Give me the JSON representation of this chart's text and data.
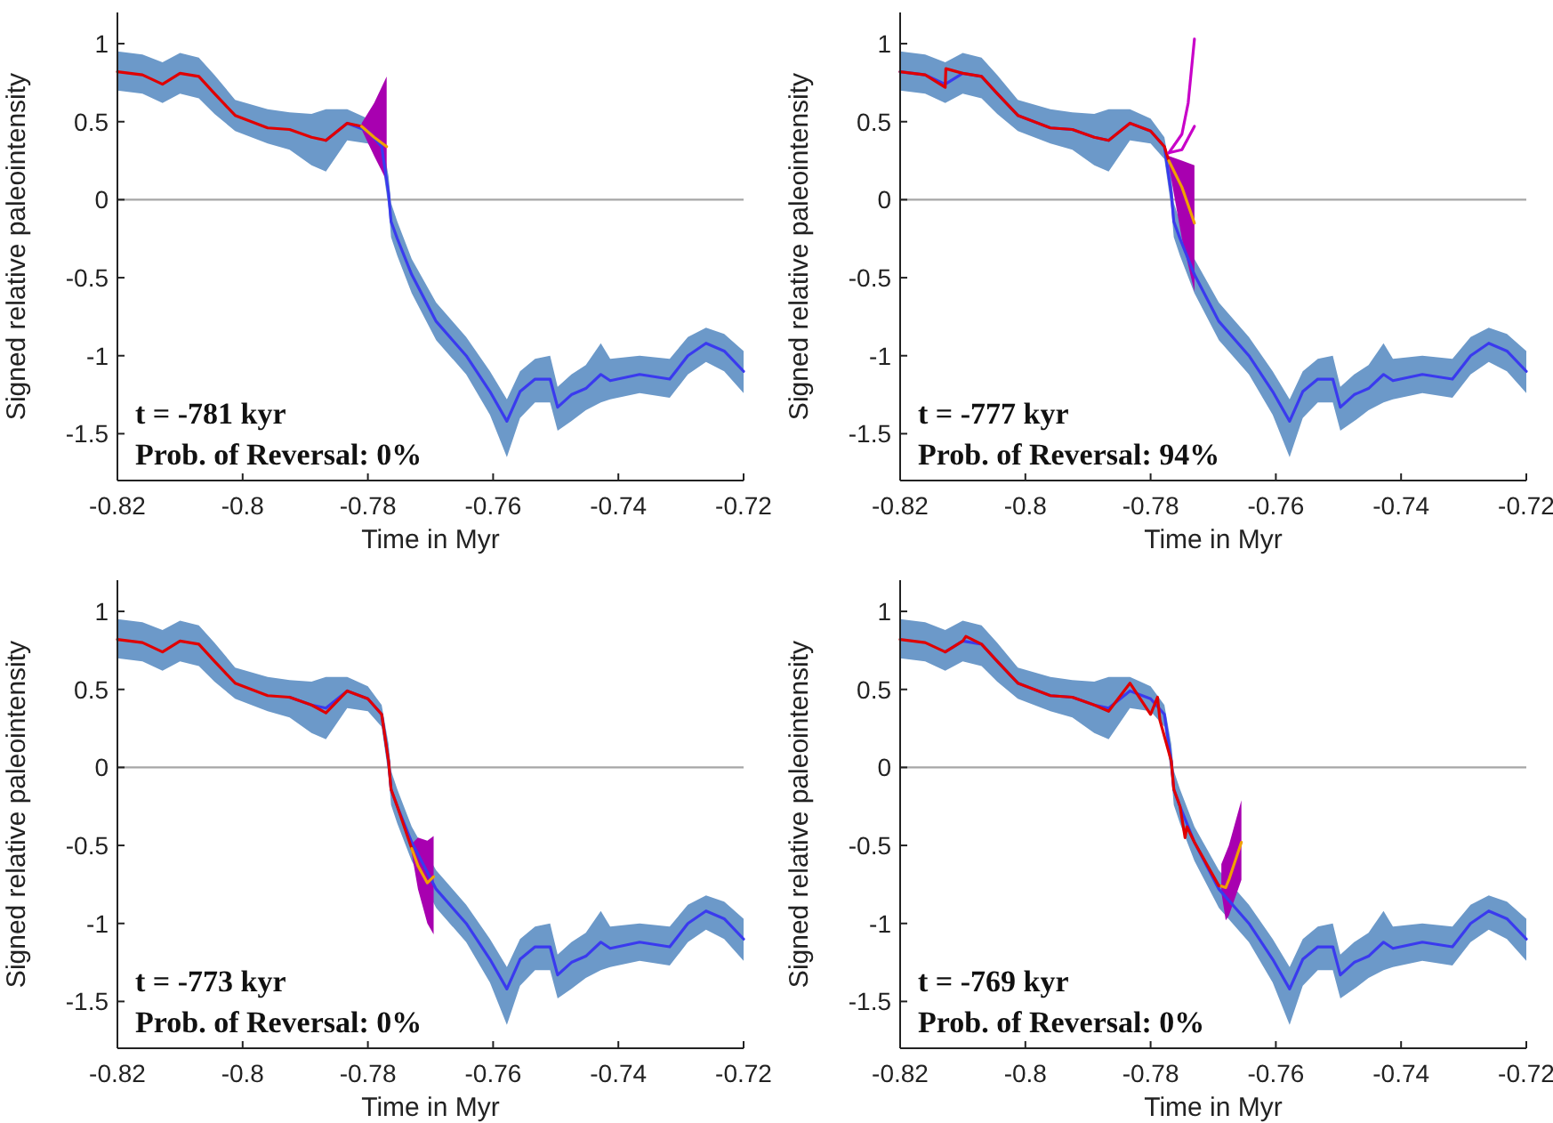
{
  "chart_data": [
    {
      "type": "line",
      "xlabel": "Time in Myr",
      "ylabel": "Signed relative paleointensity",
      "xlim": [
        -0.82,
        -0.72
      ],
      "xticks": [
        -0.82,
        -0.8,
        -0.78,
        -0.76,
        -0.74,
        -0.72
      ],
      "ylim": [
        -1.8,
        1.2
      ],
      "yticks": [
        -1.5,
        -1,
        -0.5,
        0,
        0.5,
        1
      ],
      "ref_lines": [
        {
          "axis": "y",
          "value": 0,
          "color": "#a6a6a6"
        }
      ],
      "annotations": [
        "t = -781 kyr",
        "Prob. of Reversal: 0%"
      ],
      "series": [
        {
          "type": "area",
          "color": "#6c99c9",
          "x": [
            -0.82,
            -0.816,
            -0.8128,
            -0.81,
            -0.807,
            -0.8045,
            -0.8012,
            -0.796,
            -0.7925,
            -0.789,
            -0.7867,
            -0.7833,
            -0.78,
            -0.7778,
            -0.7767,
            -0.7763,
            -0.7753,
            -0.773,
            -0.7691,
            -0.7643,
            -0.7605,
            -0.7578,
            -0.7557,
            -0.7533,
            -0.7509,
            -0.7497,
            -0.7475,
            -0.7452,
            -0.7428,
            -0.7413,
            -0.7366,
            -0.7318,
            -0.7289,
            -0.726,
            -0.7231,
            -0.72
          ],
          "values": [
            null,
            null,
            null,
            null,
            null,
            null,
            null,
            null,
            null,
            null,
            null,
            null,
            null,
            null,
            null,
            null,
            null,
            null,
            null,
            null,
            null,
            null,
            null,
            null,
            null,
            null,
            null,
            null,
            null,
            null,
            null,
            null,
            null,
            null,
            null,
            null
          ],
          "lower": [
            0.7,
            0.68,
            0.62,
            0.68,
            0.65,
            0.55,
            0.44,
            0.36,
            0.32,
            0.22,
            0.18,
            0.38,
            0.36,
            0.26,
            -0.05,
            -0.24,
            -0.36,
            -0.6,
            -0.9,
            -1.12,
            -1.38,
            -1.65,
            -1.4,
            -1.3,
            -1.3,
            -1.48,
            -1.42,
            -1.35,
            -1.3,
            -1.28,
            -1.24,
            -1.27,
            -1.12,
            -1.04,
            -1.1,
            -1.24
          ],
          "upper": [
            0.95,
            0.93,
            0.88,
            0.94,
            0.91,
            0.8,
            0.64,
            0.58,
            0.56,
            0.55,
            0.58,
            0.58,
            0.52,
            0.4,
            0.15,
            -0.02,
            -0.14,
            -0.38,
            -0.66,
            -0.88,
            -1.1,
            -1.28,
            -1.1,
            -1.02,
            -1.0,
            -1.2,
            -1.12,
            -1.06,
            -0.92,
            -1.02,
            -1.0,
            -1.02,
            -0.88,
            -0.82,
            -0.86,
            -0.97
          ]
        },
        {
          "type": "area",
          "color": "#a800b0",
          "x": [
            -0.781,
            -0.779,
            -0.777
          ],
          "values": [
            null,
            null,
            null
          ],
          "lower": [
            0.45,
            0.28,
            0.12
          ],
          "upper": [
            0.49,
            0.62,
            0.79
          ]
        },
        {
          "color": "#3a3aee",
          "x": [
            -0.7867,
            -0.7833,
            -0.78,
            -0.7778,
            -0.7767,
            -0.7763,
            -0.7753,
            -0.773,
            -0.7691,
            -0.7643,
            -0.7605,
            -0.7578,
            -0.7557,
            -0.7533,
            -0.7509,
            -0.7497,
            -0.7475,
            -0.7452,
            -0.7428,
            -0.7413,
            -0.7366,
            -0.7318,
            -0.7289,
            -0.726,
            -0.7231,
            -0.72
          ],
          "values": [
            0.38,
            0.49,
            0.44,
            0.34,
            0.04,
            -0.14,
            -0.25,
            -0.48,
            -0.78,
            -1.0,
            -1.23,
            -1.42,
            -1.23,
            -1.15,
            -1.15,
            -1.33,
            -1.25,
            -1.21,
            -1.12,
            -1.16,
            -1.12,
            -1.15,
            -1.0,
            -0.92,
            -0.97,
            -1.1
          ]
        },
        {
          "color": "#e00000",
          "x": [
            -0.82,
            -0.816,
            -0.8128,
            -0.81,
            -0.807,
            -0.8045,
            -0.8012,
            -0.796,
            -0.7925,
            -0.789,
            -0.7867,
            -0.7833,
            -0.781
          ],
          "values": [
            0.82,
            0.8,
            0.74,
            0.81,
            0.79,
            0.68,
            0.54,
            0.46,
            0.45,
            0.4,
            0.38,
            0.49,
            0.47
          ]
        },
        {
          "color": "#f0a000",
          "x": [
            -0.781,
            -0.779,
            -0.777
          ],
          "values": [
            0.47,
            0.4,
            0.34
          ]
        }
      ]
    },
    {
      "type": "line",
      "xlabel": "Time in Myr",
      "ylabel": "Signed relative paleointensity",
      "xlim": [
        -0.82,
        -0.72
      ],
      "xticks": [
        -0.82,
        -0.8,
        -0.78,
        -0.76,
        -0.74,
        -0.72
      ],
      "ylim": [
        -1.8,
        1.2
      ],
      "yticks": [
        -1.5,
        -1,
        -0.5,
        0,
        0.5,
        1
      ],
      "ref_lines": [
        {
          "axis": "y",
          "value": 0,
          "color": "#a6a6a6"
        }
      ],
      "annotations": [
        "t = -777 kyr",
        "Prob. of Reversal: 94%"
      ],
      "series": [
        {
          "type": "area",
          "color": "#6c99c9",
          "x": [
            -0.82,
            -0.816,
            -0.8128,
            -0.81,
            -0.807,
            -0.8045,
            -0.8012,
            -0.796,
            -0.7925,
            -0.789,
            -0.7867,
            -0.7833,
            -0.78,
            -0.7778,
            -0.7767,
            -0.7763,
            -0.7753,
            -0.773,
            -0.7691,
            -0.7643,
            -0.7605,
            -0.7578,
            -0.7557,
            -0.7533,
            -0.7509,
            -0.7497,
            -0.7475,
            -0.7452,
            -0.7428,
            -0.7413,
            -0.7366,
            -0.7318,
            -0.7289,
            -0.726,
            -0.7231,
            -0.72
          ],
          "values": [
            null,
            null,
            null,
            null,
            null,
            null,
            null,
            null,
            null,
            null,
            null,
            null,
            null,
            null,
            null,
            null,
            null,
            null,
            null,
            null,
            null,
            null,
            null,
            null,
            null,
            null,
            null,
            null,
            null,
            null,
            null,
            null,
            null,
            null,
            null,
            null
          ],
          "lower": [
            0.7,
            0.68,
            0.62,
            0.68,
            0.65,
            0.55,
            0.44,
            0.36,
            0.32,
            0.22,
            0.18,
            0.38,
            0.36,
            0.26,
            -0.05,
            -0.24,
            -0.36,
            -0.6,
            -0.9,
            -1.12,
            -1.38,
            -1.65,
            -1.4,
            -1.3,
            -1.3,
            -1.48,
            -1.42,
            -1.35,
            -1.3,
            -1.28,
            -1.24,
            -1.27,
            -1.12,
            -1.04,
            -1.1,
            -1.24
          ],
          "upper": [
            0.95,
            0.93,
            0.88,
            0.94,
            0.91,
            0.8,
            0.64,
            0.58,
            0.56,
            0.55,
            0.58,
            0.58,
            0.52,
            0.4,
            0.15,
            -0.02,
            -0.14,
            -0.38,
            -0.66,
            -0.88,
            -1.1,
            -1.28,
            -1.1,
            -1.02,
            -1.0,
            -1.2,
            -1.12,
            -1.06,
            -0.92,
            -1.02,
            -1.0,
            -1.02,
            -0.88,
            -0.82,
            -0.86,
            -0.97
          ]
        },
        {
          "type": "area",
          "color": "#a800b0",
          "x": [
            -0.7771,
            -0.775,
            -0.773
          ],
          "values": [
            null,
            null,
            null
          ],
          "lower": [
            0.22,
            -0.25,
            -0.59
          ],
          "upper": [
            0.28,
            0.25,
            0.22
          ]
        },
        {
          "color": "#3a3aee",
          "x": [
            -0.82,
            -0.816,
            -0.8128,
            -0.81,
            -0.807,
            -0.8045,
            -0.8012,
            -0.796,
            -0.7925,
            -0.789,
            -0.7867,
            -0.7833,
            -0.78,
            -0.7778,
            -0.7767,
            -0.7763,
            -0.7753,
            -0.773,
            -0.7691,
            -0.7643,
            -0.7605,
            -0.7578,
            -0.7557,
            -0.7533,
            -0.7509,
            -0.7497,
            -0.7475,
            -0.7452,
            -0.7428,
            -0.7413,
            -0.7366,
            -0.7318,
            -0.7289,
            -0.726,
            -0.7231,
            -0.72
          ],
          "values": [
            0.82,
            0.8,
            0.74,
            0.81,
            0.79,
            0.68,
            0.54,
            0.46,
            0.45,
            0.4,
            0.38,
            0.49,
            0.44,
            0.34,
            0.04,
            -0.14,
            -0.25,
            -0.48,
            -0.78,
            -1.0,
            -1.23,
            -1.42,
            -1.23,
            -1.15,
            -1.15,
            -1.33,
            -1.25,
            -1.21,
            -1.12,
            -1.16,
            -1.12,
            -1.15,
            -1.0,
            -0.92,
            -0.97,
            -1.1
          ]
        },
        {
          "color": "#e00000",
          "x": [
            -0.82,
            -0.816,
            -0.8128,
            -0.8127,
            -0.81,
            -0.807,
            -0.8045,
            -0.8012,
            -0.796,
            -0.7925,
            -0.789,
            -0.7867,
            -0.7833,
            -0.78,
            -0.7778,
            -0.7771
          ],
          "values": [
            0.82,
            0.8,
            0.72,
            0.84,
            0.81,
            0.79,
            0.68,
            0.54,
            0.46,
            0.45,
            0.4,
            0.38,
            0.49,
            0.44,
            0.34,
            0.25
          ]
        },
        {
          "color": "#f0a000",
          "x": [
            -0.7771,
            -0.775,
            -0.773
          ],
          "values": [
            0.25,
            0.08,
            -0.15
          ]
        },
        {
          "color": "#c800c8",
          "x": [
            -0.7771,
            -0.775,
            -0.774,
            -0.773
          ],
          "values": [
            0.3,
            0.42,
            0.62,
            1.03
          ]
        },
        {
          "color": "#c800c8",
          "x": [
            -0.7771,
            -0.775,
            -0.773
          ],
          "values": [
            0.3,
            0.32,
            0.47
          ]
        }
      ]
    },
    {
      "type": "line",
      "xlabel": "Time in Myr",
      "ylabel": "Signed relative paleointensity",
      "xlim": [
        -0.82,
        -0.72
      ],
      "xticks": [
        -0.82,
        -0.8,
        -0.78,
        -0.76,
        -0.74,
        -0.72
      ],
      "ylim": [
        -1.8,
        1.2
      ],
      "yticks": [
        -1.5,
        -1,
        -0.5,
        0,
        0.5,
        1
      ],
      "ref_lines": [
        {
          "axis": "y",
          "value": 0,
          "color": "#a6a6a6"
        }
      ],
      "annotations": [
        "t = -773 kyr",
        "Prob. of Reversal: 0%"
      ],
      "series": [
        {
          "type": "area",
          "color": "#6c99c9",
          "x": [
            -0.82,
            -0.816,
            -0.8128,
            -0.81,
            -0.807,
            -0.8045,
            -0.8012,
            -0.796,
            -0.7925,
            -0.789,
            -0.7867,
            -0.7833,
            -0.78,
            -0.7778,
            -0.7767,
            -0.7763,
            -0.7753,
            -0.773,
            -0.7691,
            -0.7643,
            -0.7605,
            -0.7578,
            -0.7557,
            -0.7533,
            -0.7509,
            -0.7497,
            -0.7475,
            -0.7452,
            -0.7428,
            -0.7413,
            -0.7366,
            -0.7318,
            -0.7289,
            -0.726,
            -0.7231,
            -0.72
          ],
          "values": [
            null,
            null,
            null,
            null,
            null,
            null,
            null,
            null,
            null,
            null,
            null,
            null,
            null,
            null,
            null,
            null,
            null,
            null,
            null,
            null,
            null,
            null,
            null,
            null,
            null,
            null,
            null,
            null,
            null,
            null,
            null,
            null,
            null,
            null,
            null,
            null
          ],
          "lower": [
            0.7,
            0.68,
            0.62,
            0.68,
            0.65,
            0.55,
            0.44,
            0.36,
            0.32,
            0.22,
            0.18,
            0.38,
            0.36,
            0.26,
            -0.05,
            -0.24,
            -0.36,
            -0.6,
            -0.9,
            -1.12,
            -1.38,
            -1.65,
            -1.4,
            -1.3,
            -1.3,
            -1.48,
            -1.42,
            -1.35,
            -1.3,
            -1.28,
            -1.24,
            -1.27,
            -1.12,
            -1.04,
            -1.1,
            -1.24
          ],
          "upper": [
            0.95,
            0.93,
            0.88,
            0.94,
            0.91,
            0.8,
            0.64,
            0.58,
            0.56,
            0.55,
            0.58,
            0.58,
            0.52,
            0.4,
            0.15,
            -0.02,
            -0.14,
            -0.38,
            -0.66,
            -0.88,
            -1.1,
            -1.28,
            -1.1,
            -1.02,
            -1.0,
            -1.2,
            -1.12,
            -1.06,
            -0.92,
            -1.02,
            -1.0,
            -1.02,
            -0.88,
            -0.82,
            -0.86,
            -0.97
          ]
        },
        {
          "type": "area",
          "color": "#a800b0",
          "x": [
            -0.773,
            -0.772,
            -0.7705,
            -0.7695
          ],
          "values": [
            null,
            null,
            null,
            null
          ],
          "lower": [
            -0.55,
            -0.78,
            -1.0,
            -1.07
          ],
          "upper": [
            -0.49,
            -0.45,
            -0.47,
            -0.44
          ]
        },
        {
          "color": "#3a3aee",
          "x": [
            -0.7925,
            -0.789,
            -0.7867,
            -0.7833,
            -0.78,
            -0.7778,
            -0.7767,
            -0.7763,
            -0.7753,
            -0.773,
            -0.7691,
            -0.7643,
            -0.7605,
            -0.7578,
            -0.7557,
            -0.7533,
            -0.7509,
            -0.7497,
            -0.7475,
            -0.7452,
            -0.7428,
            -0.7413,
            -0.7366,
            -0.7318,
            -0.7289,
            -0.726,
            -0.7231,
            -0.72
          ],
          "values": [
            0.45,
            0.4,
            0.38,
            0.49,
            0.44,
            0.34,
            0.04,
            -0.14,
            -0.25,
            -0.48,
            -0.78,
            -1.0,
            -1.23,
            -1.42,
            -1.23,
            -1.15,
            -1.15,
            -1.33,
            -1.25,
            -1.21,
            -1.12,
            -1.16,
            -1.12,
            -1.15,
            -1.0,
            -0.92,
            -0.97,
            -1.1
          ]
        },
        {
          "color": "#e00000",
          "x": [
            -0.82,
            -0.816,
            -0.8128,
            -0.81,
            -0.807,
            -0.8045,
            -0.8012,
            -0.796,
            -0.7925,
            -0.789,
            -0.7867,
            -0.7833,
            -0.78,
            -0.7778,
            -0.7767,
            -0.7763,
            -0.7753,
            -0.773
          ],
          "values": [
            0.82,
            0.8,
            0.74,
            0.81,
            0.79,
            0.68,
            0.54,
            0.46,
            0.45,
            0.4,
            0.35,
            0.49,
            0.44,
            0.34,
            0.04,
            -0.14,
            -0.25,
            -0.52
          ]
        },
        {
          "color": "#f0a000",
          "x": [
            -0.773,
            -0.772,
            -0.7705,
            -0.7695
          ],
          "values": [
            -0.52,
            -0.63,
            -0.74,
            -0.7
          ]
        }
      ]
    },
    {
      "type": "line",
      "xlabel": "Time in Myr",
      "ylabel": "Signed relative paleointensity",
      "xlim": [
        -0.82,
        -0.72
      ],
      "xticks": [
        -0.82,
        -0.8,
        -0.78,
        -0.76,
        -0.74,
        -0.72
      ],
      "ylim": [
        -1.8,
        1.2
      ],
      "yticks": [
        -1.5,
        -1,
        -0.5,
        0,
        0.5,
        1
      ],
      "ref_lines": [
        {
          "axis": "y",
          "value": 0,
          "color": "#a6a6a6"
        }
      ],
      "annotations": [
        "t = -769 kyr",
        "Prob. of Reversal: 0%"
      ],
      "series": [
        {
          "type": "area",
          "color": "#6c99c9",
          "x": [
            -0.82,
            -0.816,
            -0.8128,
            -0.81,
            -0.807,
            -0.8045,
            -0.8012,
            -0.796,
            -0.7925,
            -0.789,
            -0.7867,
            -0.7833,
            -0.78,
            -0.7778,
            -0.7767,
            -0.7763,
            -0.7753,
            -0.773,
            -0.7691,
            -0.7643,
            -0.7605,
            -0.7578,
            -0.7557,
            -0.7533,
            -0.7509,
            -0.7497,
            -0.7475,
            -0.7452,
            -0.7428,
            -0.7413,
            -0.7366,
            -0.7318,
            -0.7289,
            -0.726,
            -0.7231,
            -0.72
          ],
          "values": [
            null,
            null,
            null,
            null,
            null,
            null,
            null,
            null,
            null,
            null,
            null,
            null,
            null,
            null,
            null,
            null,
            null,
            null,
            null,
            null,
            null,
            null,
            null,
            null,
            null,
            null,
            null,
            null,
            null,
            null,
            null,
            null,
            null,
            null,
            null,
            null
          ],
          "lower": [
            0.7,
            0.68,
            0.62,
            0.68,
            0.65,
            0.55,
            0.44,
            0.36,
            0.32,
            0.22,
            0.18,
            0.38,
            0.36,
            0.26,
            -0.05,
            -0.24,
            -0.36,
            -0.6,
            -0.9,
            -1.12,
            -1.38,
            -1.65,
            -1.4,
            -1.3,
            -1.3,
            -1.48,
            -1.42,
            -1.35,
            -1.3,
            -1.28,
            -1.24,
            -1.27,
            -1.12,
            -1.04,
            -1.1,
            -1.24
          ],
          "upper": [
            0.95,
            0.93,
            0.88,
            0.94,
            0.91,
            0.8,
            0.64,
            0.58,
            0.56,
            0.55,
            0.58,
            0.58,
            0.52,
            0.4,
            0.15,
            -0.02,
            -0.14,
            -0.38,
            -0.66,
            -0.88,
            -1.1,
            -1.28,
            -1.1,
            -1.02,
            -1.0,
            -1.2,
            -1.12,
            -1.06,
            -0.92,
            -1.02,
            -1.0,
            -1.02,
            -0.88,
            -0.82,
            -0.86,
            -0.97
          ]
        },
        {
          "type": "area",
          "color": "#a800b0",
          "x": [
            -0.7687,
            -0.768,
            -0.7675,
            -0.7655
          ],
          "values": [
            null,
            null,
            null,
            null
          ],
          "lower": [
            -0.8,
            -0.98,
            -0.95,
            -0.72
          ],
          "upper": [
            -0.62,
            -0.55,
            -0.5,
            -0.21
          ]
        },
        {
          "color": "#3a3aee",
          "x": [
            -0.8128,
            -0.81,
            -0.807,
            -0.8045,
            -0.8012,
            -0.796,
            -0.7925,
            -0.789,
            -0.7867,
            -0.7833,
            -0.78,
            -0.7778,
            -0.7767,
            -0.7763,
            -0.7753,
            -0.773,
            -0.7691,
            -0.7643,
            -0.7605,
            -0.7578,
            -0.7557,
            -0.7533,
            -0.7509,
            -0.7497,
            -0.7475,
            -0.7452,
            -0.7428,
            -0.7413,
            -0.7366,
            -0.7318,
            -0.7289,
            -0.726,
            -0.7231,
            -0.72
          ],
          "values": [
            0.74,
            0.81,
            0.79,
            0.68,
            0.54,
            0.46,
            0.45,
            0.4,
            0.38,
            0.49,
            0.44,
            0.34,
            0.04,
            -0.14,
            -0.25,
            -0.48,
            -0.78,
            -1.0,
            -1.23,
            -1.42,
            -1.23,
            -1.15,
            -1.15,
            -1.33,
            -1.25,
            -1.21,
            -1.12,
            -1.16,
            -1.12,
            -1.15,
            -1.0,
            -0.92,
            -0.97,
            -1.1
          ]
        },
        {
          "color": "#e00000",
          "x": [
            -0.82,
            -0.816,
            -0.8128,
            -0.81,
            -0.8095,
            -0.807,
            -0.8045,
            -0.8012,
            -0.796,
            -0.7925,
            -0.789,
            -0.7867,
            -0.7833,
            -0.78,
            -0.7789,
            -0.7785,
            -0.7767,
            -0.7763,
            -0.7753,
            -0.7745,
            -0.7742,
            -0.773,
            -0.7691,
            -0.7687
          ],
          "values": [
            0.82,
            0.8,
            0.74,
            0.81,
            0.84,
            0.79,
            0.68,
            0.54,
            0.46,
            0.45,
            0.4,
            0.36,
            0.54,
            0.34,
            0.45,
            0.3,
            0.04,
            -0.14,
            -0.25,
            -0.45,
            -0.38,
            -0.48,
            -0.76,
            -0.76
          ]
        },
        {
          "color": "#f0a000",
          "x": [
            -0.7687,
            -0.768,
            -0.7675,
            -0.7655
          ],
          "values": [
            -0.76,
            -0.77,
            -0.72,
            -0.48
          ]
        }
      ]
    }
  ]
}
